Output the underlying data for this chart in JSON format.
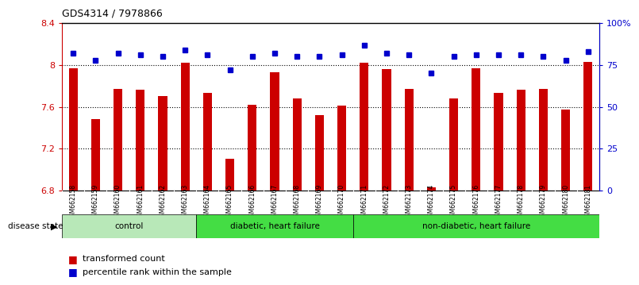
{
  "title": "GDS4314 / 7978866",
  "samples": [
    "GSM662158",
    "GSM662159",
    "GSM662160",
    "GSM662161",
    "GSM662162",
    "GSM662163",
    "GSM662164",
    "GSM662165",
    "GSM662166",
    "GSM662167",
    "GSM662168",
    "GSM662169",
    "GSM662170",
    "GSM662171",
    "GSM662172",
    "GSM662173",
    "GSM662174",
    "GSM662175",
    "GSM662176",
    "GSM662177",
    "GSM662178",
    "GSM662179",
    "GSM662180",
    "GSM662181"
  ],
  "bar_values": [
    7.97,
    7.48,
    7.77,
    7.76,
    7.7,
    8.02,
    7.73,
    7.1,
    7.62,
    7.93,
    7.68,
    7.52,
    7.61,
    8.02,
    7.96,
    7.77,
    6.83,
    7.68,
    7.97,
    7.73,
    7.76,
    7.77,
    7.57,
    8.03
  ],
  "percentile_values": [
    82,
    78,
    82,
    81,
    80,
    84,
    81,
    72,
    80,
    82,
    80,
    80,
    81,
    87,
    82,
    81,
    70,
    80,
    81,
    81,
    81,
    80,
    78,
    83
  ],
  "bar_color": "#cc0000",
  "dot_color": "#0000cc",
  "ylim_left": [
    6.8,
    8.4
  ],
  "ylim_right": [
    0,
    100
  ],
  "yticks_left": [
    6.8,
    7.2,
    7.6,
    8.0,
    8.4
  ],
  "ytick_left_labels": [
    "6.8",
    "7.2",
    "7.6",
    "8",
    "8.4"
  ],
  "yticks_right": [
    0,
    25,
    50,
    75,
    100
  ],
  "ytick_right_labels": [
    "0",
    "25",
    "50",
    "75",
    "100%"
  ],
  "dotted_lines": [
    7.2,
    7.6,
    8.0
  ],
  "groups_info": [
    {
      "start": 0,
      "end": 5,
      "color": "#b8e8b8",
      "label": "control"
    },
    {
      "start": 6,
      "end": 12,
      "color": "#44dd44",
      "label": "diabetic, heart failure"
    },
    {
      "start": 13,
      "end": 23,
      "color": "#44dd44",
      "label": "non-diabetic, heart failure"
    }
  ],
  "bar_width": 0.4,
  "background_plot": "#ffffff",
  "background_xtick": "#c8c8c8",
  "disease_state_label": "disease state",
  "legend_transformed": "transformed count",
  "legend_percentile": "percentile rank within the sample"
}
